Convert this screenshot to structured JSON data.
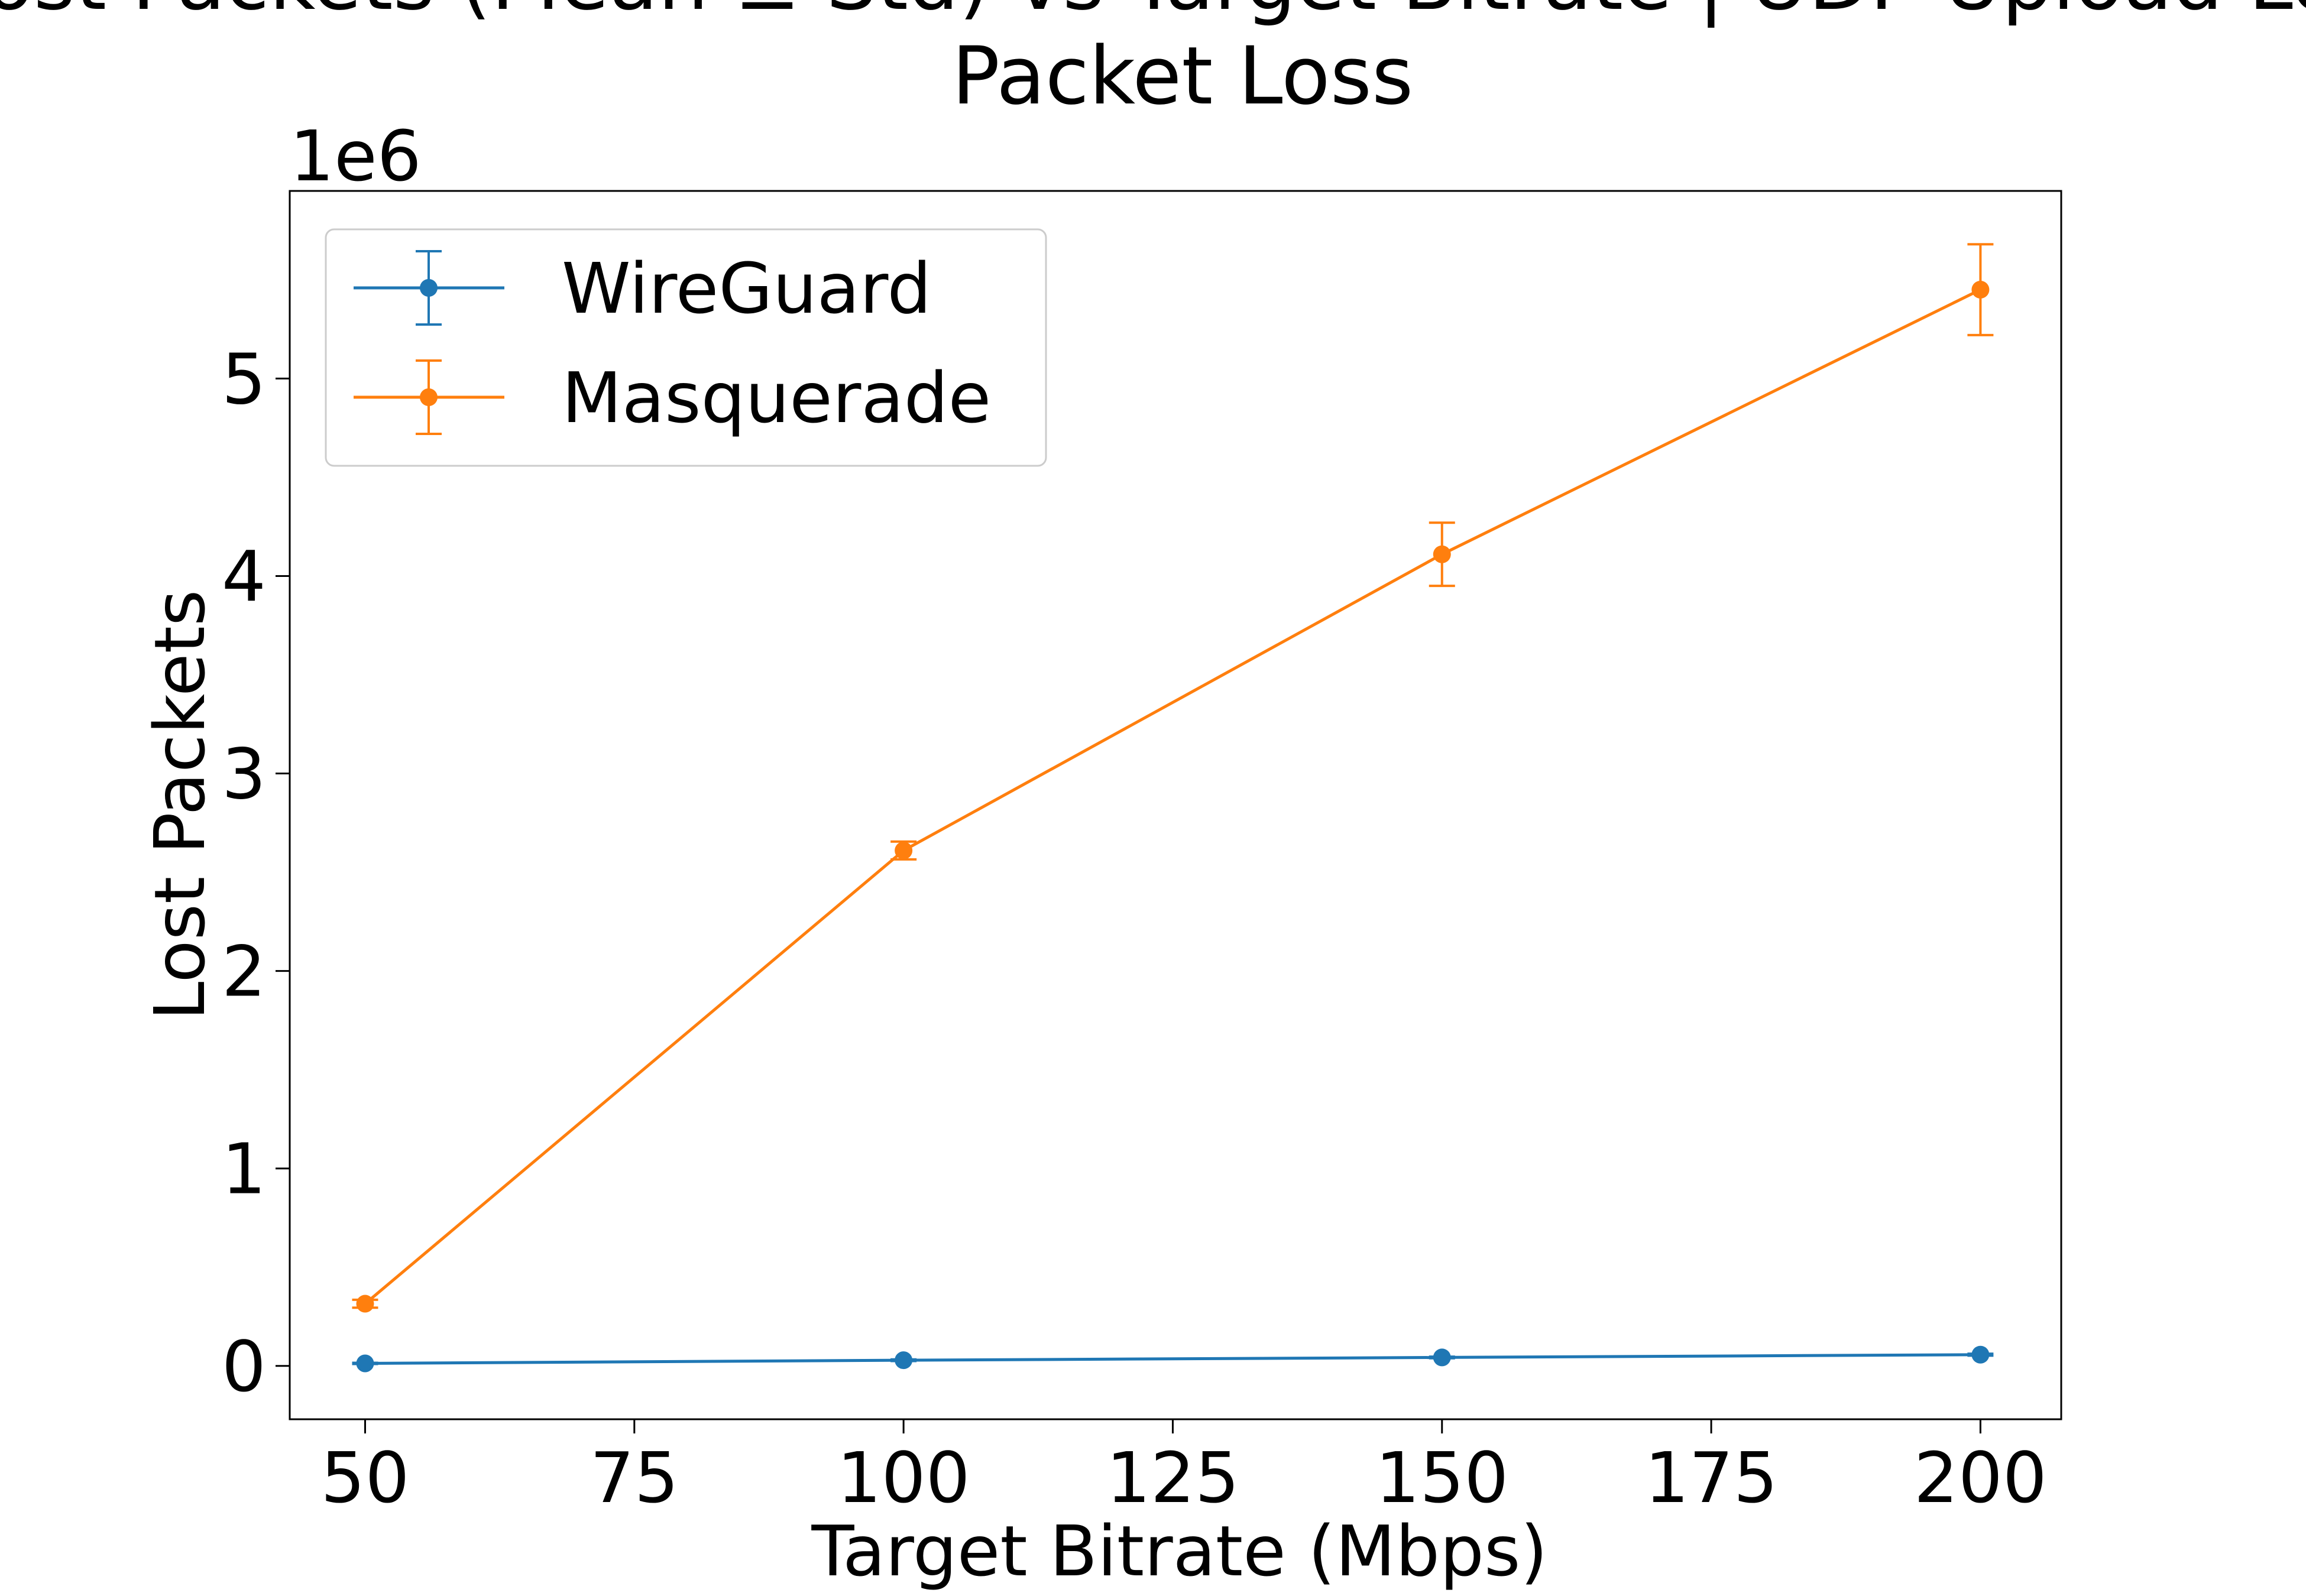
{
  "chart_data": {
    "type": "line",
    "title_lines": [
      "Lost Packets (Mean ± Std) vs Target Bitrate | UDP Upload Loss",
      "Packet Loss"
    ],
    "xlabel": "Target Bitrate (Mbps)",
    "ylabel": "Lost Packets",
    "y_offset_label": "1e6",
    "x_ticks": [
      50,
      75,
      100,
      125,
      150,
      175,
      200
    ],
    "y_ticks": [
      0,
      1,
      2,
      3,
      4,
      5
    ],
    "xlim": [
      43,
      207.5
    ],
    "ylim": [
      -0.27,
      5.95
    ],
    "y_scale": 1000000,
    "grid": false,
    "legend_position": "top-left",
    "x": [
      50,
      100,
      150,
      200
    ],
    "series": [
      {
        "name": "WireGuard",
        "color": "#1f77b4",
        "values": [
          13000,
          29000,
          43000,
          57000
        ],
        "std": [
          3000,
          4000,
          4000,
          5000
        ]
      },
      {
        "name": "Masquerade",
        "color": "#ff7f0e",
        "values": [
          315000,
          2610000,
          4110000,
          5450000
        ],
        "std": [
          20000,
          45000,
          160000,
          230000
        ]
      }
    ]
  }
}
